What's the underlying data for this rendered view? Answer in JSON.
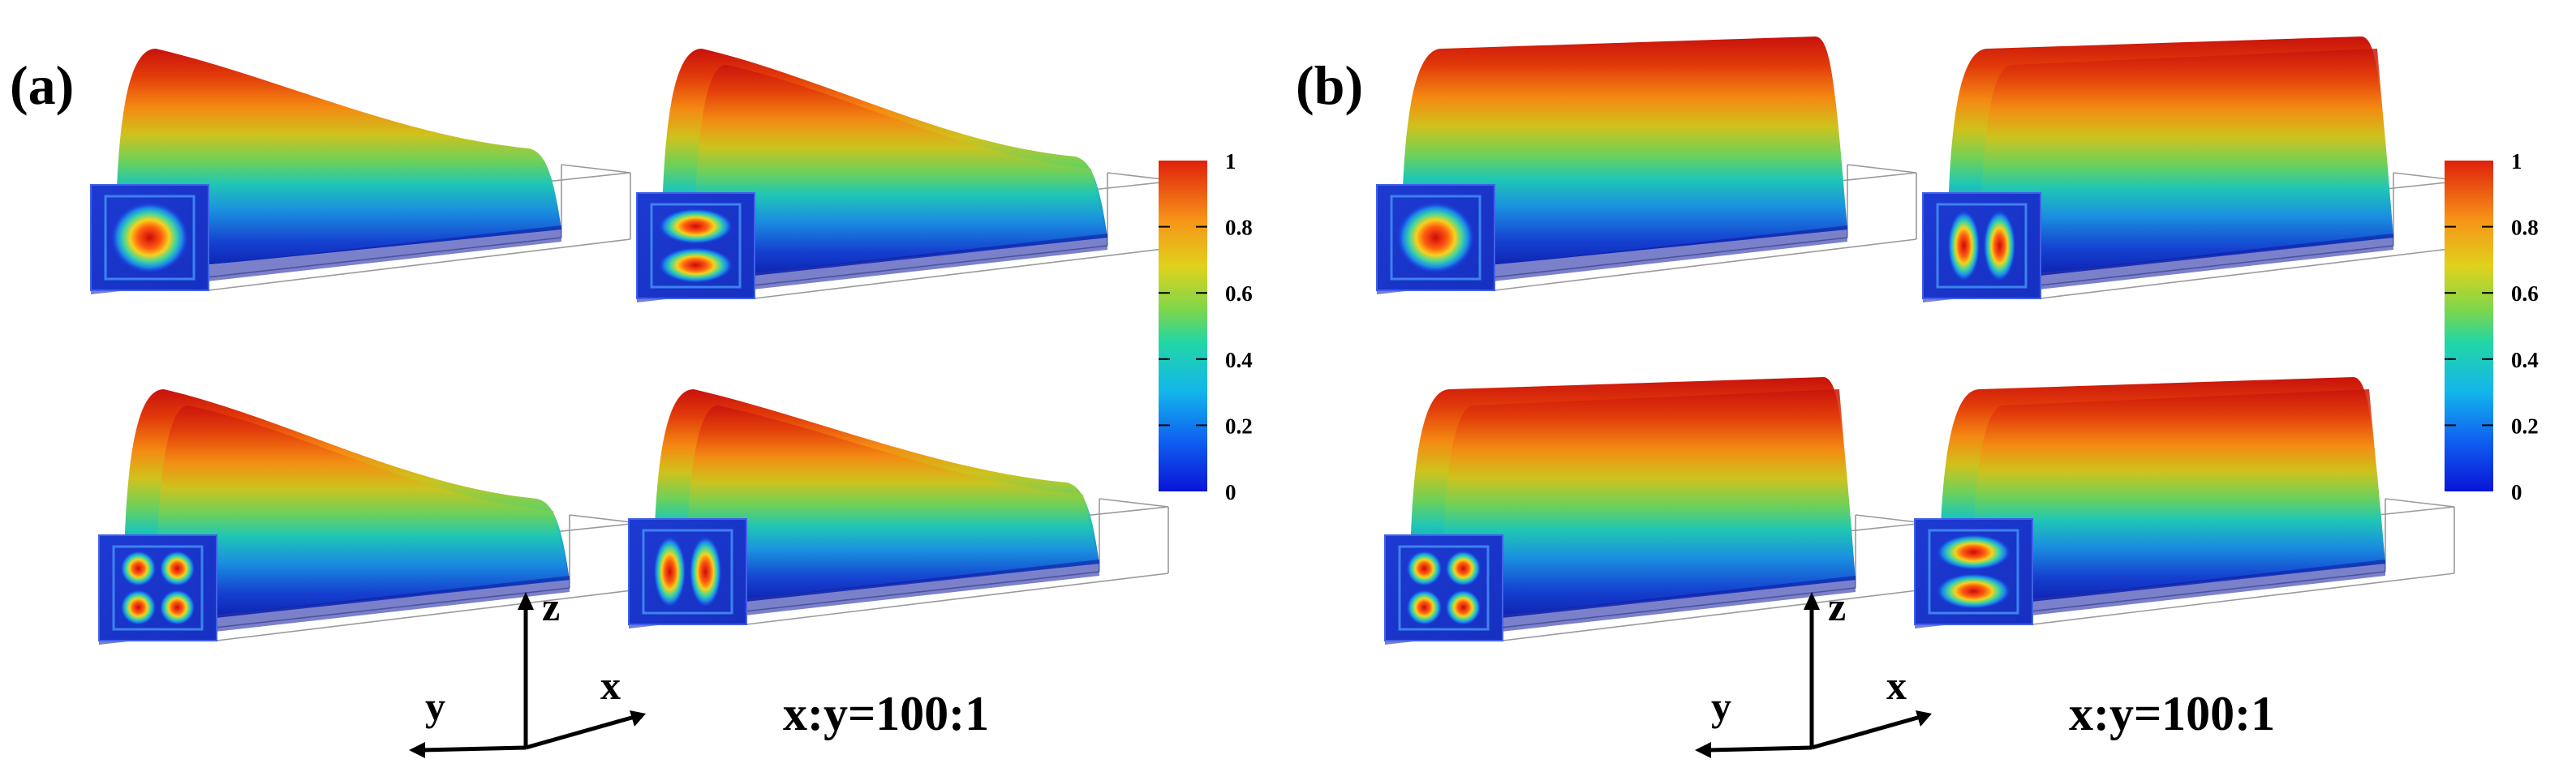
{
  "figure": {
    "panels": [
      {
        "label": "(a)",
        "ratio": "x:y=100:1",
        "axes": {
          "z": "z",
          "y": "y",
          "x": "x"
        },
        "colorbar": {
          "ticks": [
            "1",
            "0.8",
            "0.6",
            "0.4",
            "0.2",
            "0"
          ],
          "min": 0,
          "max": 1,
          "colormap": "jet"
        },
        "surfaces": [
          {
            "mode": "single-lobe",
            "profile": "decaying"
          },
          {
            "mode": "two-lobes-vertical",
            "profile": "decaying"
          },
          {
            "mode": "four-lobes",
            "profile": "decaying"
          },
          {
            "mode": "two-lobes-horizontal",
            "profile": "decaying"
          }
        ]
      },
      {
        "label": "(b)",
        "ratio": "x:y=100:1",
        "axes": {
          "z": "z",
          "y": "y",
          "x": "x"
        },
        "colorbar": {
          "ticks": [
            "1",
            "0.8",
            "0.6",
            "0.4",
            "0.2",
            "0"
          ],
          "min": 0,
          "max": 1,
          "colormap": "jet"
        },
        "surfaces": [
          {
            "mode": "single-lobe",
            "profile": "flat"
          },
          {
            "mode": "two-lobes-horizontal",
            "profile": "flat"
          },
          {
            "mode": "four-lobes",
            "profile": "flat"
          },
          {
            "mode": "two-lobes-vertical",
            "profile": "flat"
          }
        ]
      }
    ]
  }
}
